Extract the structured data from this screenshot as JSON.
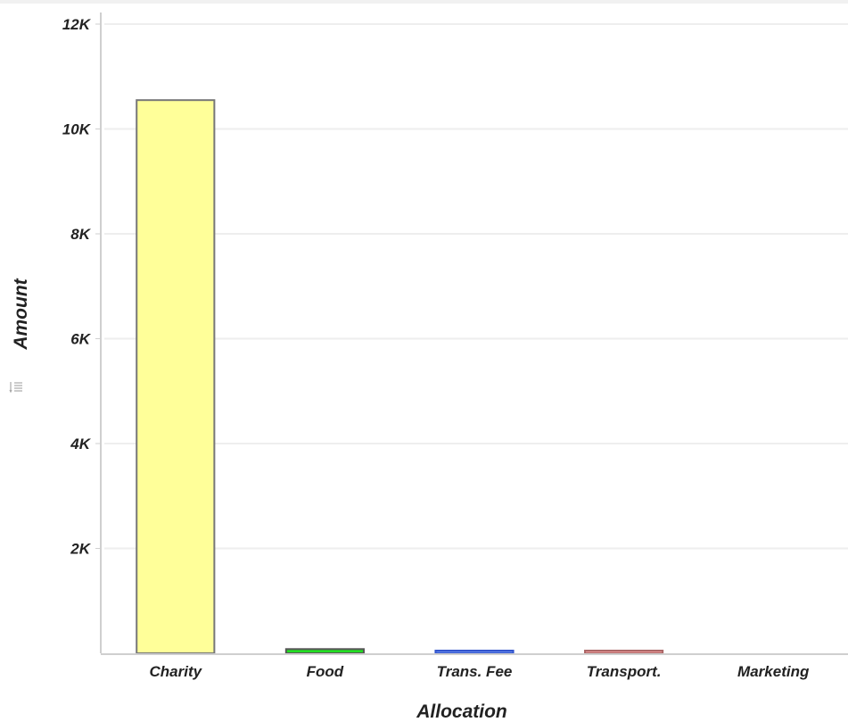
{
  "chart_data": {
    "type": "bar",
    "categories": [
      "Charity",
      "Food",
      "Trans. Fee",
      "Transport.",
      "Marketing"
    ],
    "values": [
      10550,
      80,
      25,
      50,
      0
    ],
    "ylim": [
      0,
      12000
    ],
    "ytick_values": [
      2000,
      4000,
      6000,
      8000,
      10000,
      12000
    ],
    "ytick_labels": [
      "2K",
      "4K",
      "6K",
      "8K",
      "10K",
      "12K"
    ],
    "xlabel": "Allocation",
    "ylabel": "Amount",
    "grid": true,
    "colors": {
      "fills": [
        "#ffff99",
        "#22dd22",
        "#6688ee",
        "#ee9999",
        "#cccccc"
      ],
      "strokes": [
        "#777777",
        "#555555",
        "#3355cc",
        "#aa6666",
        "#999999"
      ],
      "grid": "#eeeeee",
      "axis": "#cfcfcf"
    }
  },
  "icons": {
    "axis_menu": "filter-list-icon"
  }
}
